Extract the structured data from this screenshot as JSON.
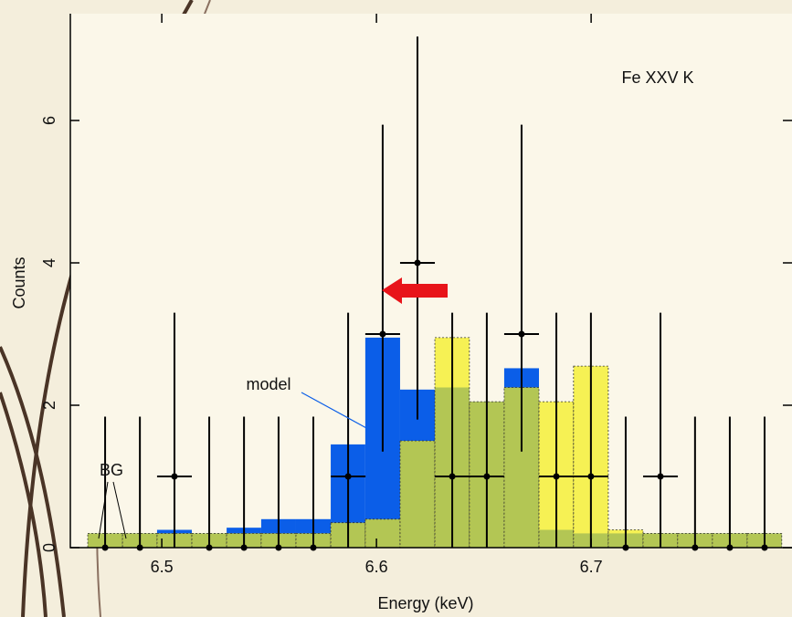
{
  "chart_data": {
    "type": "histogram",
    "xlabel": "Energy (keV)",
    "ylabel": "Counts",
    "annotations": [
      "Fe XXV K",
      "BG"
    ],
    "bins": [
      6.4655,
      6.4817,
      6.4978,
      6.514,
      6.5302,
      6.5463,
      6.5625,
      6.5787,
      6.5948,
      6.611,
      6.6272,
      6.6433,
      6.6595,
      6.6757,
      6.6918,
      6.708,
      6.7242,
      6.7403,
      6.7565,
      6.7727,
      6.7888
    ],
    "series": [
      {
        "name": "model",
        "color": "#0b5ee8",
        "values": [
          0.2,
          0.2,
          0.25,
          0.2,
          0.28,
          0.4,
          0.4,
          1.45,
          2.95,
          2.22,
          2.25,
          2.05,
          2.52,
          0.25,
          0.2,
          0.2,
          0.2,
          0.2,
          0.2,
          0.2
        ]
      },
      {
        "color": "#f4ef1a",
        "values": [
          0.2,
          0.2,
          0.2,
          0.2,
          0.2,
          0.2,
          0.2,
          0.35,
          0.4,
          1.5,
          2.95,
          2.05,
          2.25,
          2.05,
          2.55,
          0.25,
          0.2,
          0.2,
          0.2,
          0.2
        ]
      }
    ],
    "points": {
      "color": "#000000",
      "x": [
        6.4736,
        6.4898,
        6.5059,
        6.5221,
        6.5383,
        6.5544,
        6.5706,
        6.5868,
        6.6029,
        6.6191,
        6.6353,
        6.6514,
        6.6676,
        6.6838,
        6.6999,
        6.7161,
        6.7323,
        6.7484,
        6.7646,
        6.7808
      ],
      "values": [
        0,
        0,
        1,
        0,
        0,
        0,
        0,
        1,
        3,
        4,
        1,
        1,
        3,
        1,
        1,
        0,
        1,
        0,
        0,
        0
      ],
      "yerr_low": [
        0,
        0,
        1,
        0,
        0,
        0,
        0,
        1,
        1.65,
        2.2,
        1,
        1,
        1.65,
        1,
        1,
        0,
        1,
        0,
        0,
        0
      ],
      "yerr_high": [
        1.84,
        1.84,
        2.3,
        1.84,
        1.84,
        1.84,
        1.84,
        2.3,
        2.94,
        3.18,
        2.3,
        2.3,
        2.94,
        2.3,
        2.3,
        1.84,
        2.3,
        1.84,
        1.84,
        1.84
      ],
      "xerr": 0.0081
    },
    "xlim": [
      6.4574,
      6.7936
    ],
    "ylim": [
      0,
      7.5
    ],
    "xticks": [
      6.5,
      6.6,
      6.7
    ],
    "yticks": [
      0,
      2,
      4,
      6
    ]
  }
}
